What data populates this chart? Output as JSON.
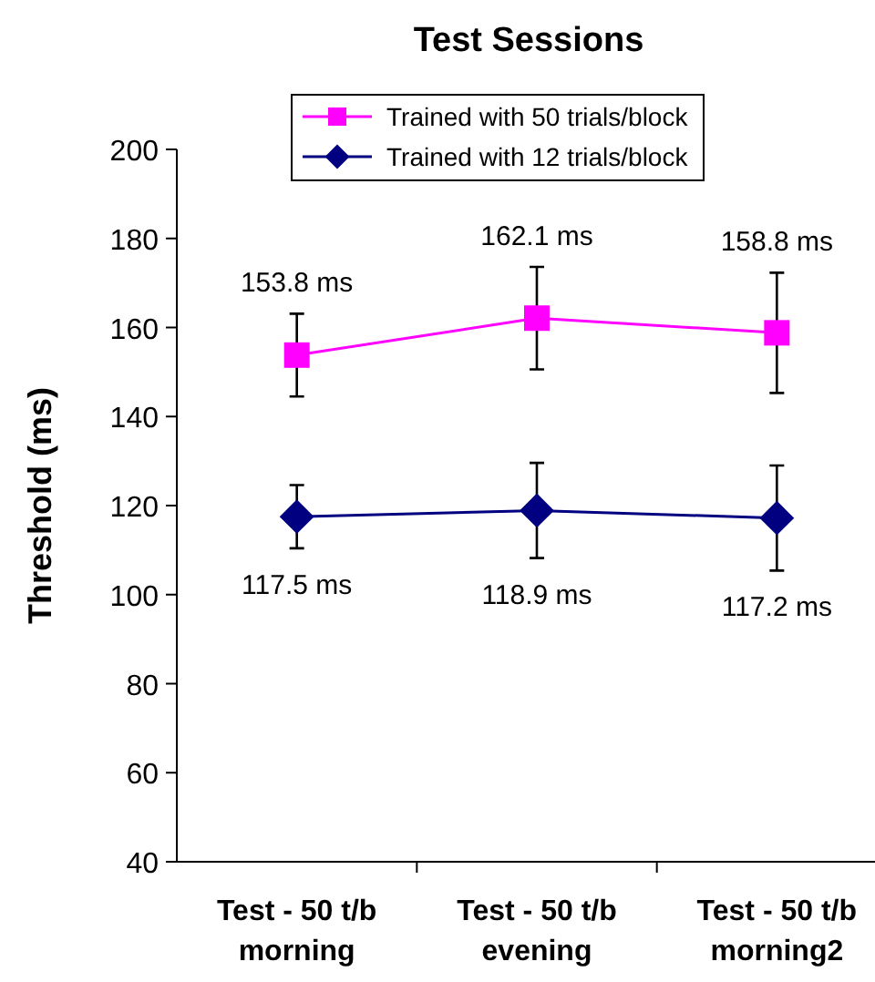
{
  "chart_data": {
    "type": "line",
    "title": "Test Sessions",
    "ylabel": "Threshold (ms)",
    "categories": [
      "Test - 50 t/b morning",
      "Test - 50 t/b evening",
      "Test - 50 t/b morning2"
    ],
    "series": [
      {
        "name": "Trained with 50 trials/block",
        "color": "#ff00ff",
        "marker": "square",
        "values": [
          153.8,
          162.1,
          158.8
        ],
        "errors": [
          9.3,
          11.5,
          13.5
        ],
        "value_labels": [
          "153.8 ms",
          "162.1 ms",
          "158.8 ms"
        ]
      },
      {
        "name": "Trained with 12 trials/block",
        "color": "#000080",
        "marker": "diamond",
        "values": [
          117.5,
          118.9,
          117.2
        ],
        "errors": [
          7.1,
          10.7,
          11.8
        ],
        "value_labels": [
          "117.5 ms",
          "118.9 ms",
          "117.2 ms"
        ]
      }
    ],
    "ylim": [
      40,
      200
    ],
    "yticks": [
      40,
      60,
      80,
      100,
      120,
      140,
      160,
      180,
      200
    ],
    "legend": "top",
    "grid": false
  }
}
